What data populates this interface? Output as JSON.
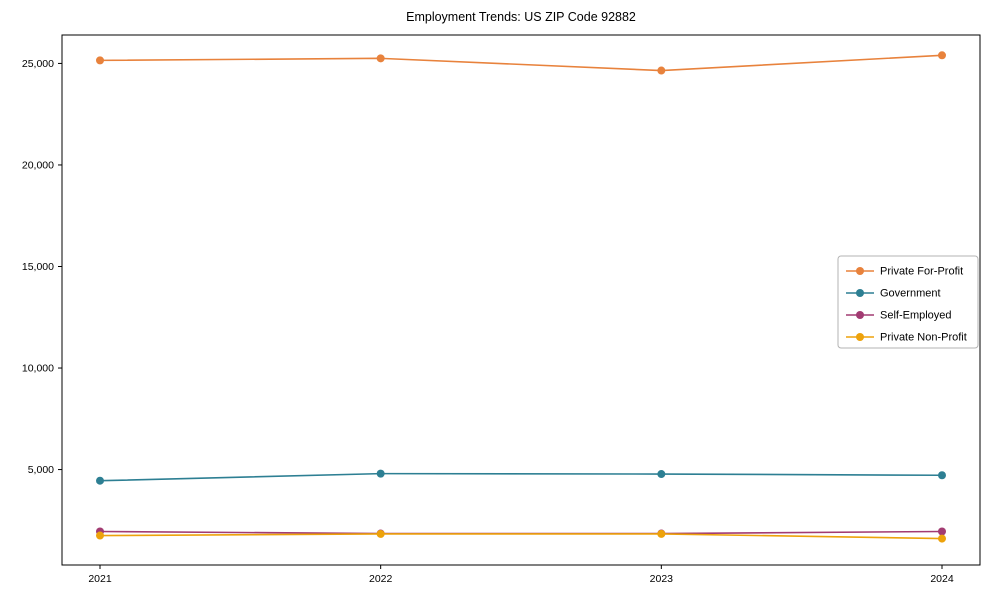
{
  "chart_data": {
    "type": "line",
    "title": "Employment Trends: US ZIP Code 92882",
    "xlabel": "",
    "ylabel": "",
    "categories": [
      "2021",
      "2022",
      "2023",
      "2024"
    ],
    "series": [
      {
        "name": "Private For-Profit",
        "color": "#e8823c",
        "values": [
          25150,
          25250,
          24650,
          25400
        ]
      },
      {
        "name": "Government",
        "color": "#2d7f93",
        "values": [
          4450,
          4800,
          4780,
          4720
        ]
      },
      {
        "name": "Self-Employed",
        "color": "#a23b72",
        "values": [
          1950,
          1850,
          1850,
          1950
        ]
      },
      {
        "name": "Private Non-Profit",
        "color": "#eda20b",
        "values": [
          1750,
          1830,
          1830,
          1600
        ]
      }
    ],
    "ylim": [
      300,
      26400
    ],
    "yticks": [
      5000,
      10000,
      15000,
      20000,
      25000
    ],
    "ytick_labels": [
      "5,000",
      "10,000",
      "15,000",
      "20,000",
      "25,000"
    ],
    "grid": false,
    "marker": "circle",
    "legend_position": "center-right",
    "plot_border": true
  }
}
